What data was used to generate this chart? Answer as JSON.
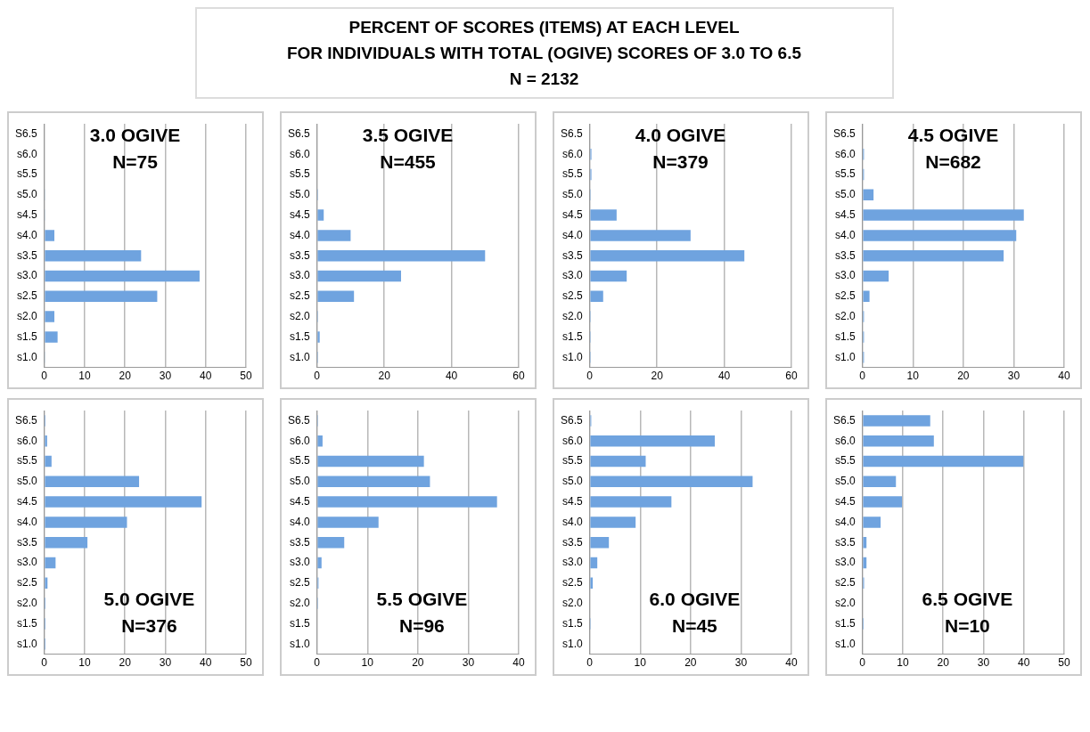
{
  "chart_data": [
    {
      "type": "other",
      "title": "PERCENT OF SCORES (ITEMS) AT EACH LEVEL",
      "subtitle": "FOR INDIVIDUALS WITH TOTAL (OGIVE) SCORES OF 3.0 TO 6.5",
      "annotations": [
        "N = 2132"
      ]
    },
    {
      "type": "bar",
      "orientation": "horizontal",
      "title": "3.0 OGIVE",
      "subtitle": "N=75",
      "categories": [
        "S6.5",
        "s6.0",
        "s5.5",
        "s5.0",
        "s4.5",
        "s4.0",
        "s3.5",
        "s3.0",
        "s2.5",
        "s2.0",
        "s1.5",
        "s1.0"
      ],
      "color": "#6fa3df",
      "values": [
        0,
        0,
        0,
        0.2,
        0.2,
        2.5,
        24,
        38.5,
        28,
        2.5,
        3.3,
        0.2
      ],
      "xlim": [
        0,
        50
      ],
      "xticks": [
        0,
        10,
        20,
        30,
        40,
        50
      ],
      "grid": "x"
    },
    {
      "type": "bar",
      "orientation": "horizontal",
      "title": "3.5 OGIVE",
      "subtitle": "N=455",
      "categories": [
        "S6.5",
        "s6.0",
        "s5.5",
        "s5.0",
        "s4.5",
        "s4.0",
        "s3.5",
        "s3.0",
        "s2.5",
        "s2.0",
        "s1.5",
        "s1.0"
      ],
      "color": "#6fa3df",
      "values": [
        0,
        0,
        0,
        0.3,
        2,
        10,
        50,
        25,
        11,
        0.3,
        0.8,
        0.3
      ],
      "xlim": [
        0,
        60
      ],
      "xticks": [
        0,
        20,
        40,
        60
      ],
      "grid": "x"
    },
    {
      "type": "bar",
      "orientation": "horizontal",
      "title": "4.0 OGIVE",
      "subtitle": "N=379",
      "categories": [
        "S6.5",
        "s6.0",
        "s5.5",
        "s5.0",
        "s4.5",
        "s4.0",
        "s3.5",
        "s3.0",
        "s2.5",
        "s2.0",
        "s1.5",
        "s1.0"
      ],
      "color": "#6fa3df",
      "values": [
        0,
        0.5,
        0.5,
        0.3,
        8,
        30,
        46,
        11,
        4,
        0.3,
        0.3,
        0.3
      ],
      "xlim": [
        0,
        60
      ],
      "xticks": [
        0,
        20,
        40,
        60
      ],
      "grid": "x"
    },
    {
      "type": "bar",
      "orientation": "horizontal",
      "title": "4.5 OGIVE",
      "subtitle": "N=682",
      "categories": [
        "S6.5",
        "s6.0",
        "s5.5",
        "s5.0",
        "s4.5",
        "s4.0",
        "s3.5",
        "s3.0",
        "s2.5",
        "s2.0",
        "s1.5",
        "s1.0"
      ],
      "color": "#6fa3df",
      "values": [
        0,
        0.3,
        0.3,
        2.2,
        32,
        30.5,
        28,
        5.2,
        1.4,
        0.3,
        0.3,
        0.3
      ],
      "xlim": [
        0,
        40
      ],
      "xticks": [
        0,
        10,
        20,
        30,
        40
      ],
      "grid": "x"
    },
    {
      "type": "bar",
      "orientation": "horizontal",
      "title": "5.0 OGIVE",
      "subtitle": "N=376",
      "categories": [
        "S6.5",
        "s6.0",
        "s5.5",
        "s5.0",
        "s4.5",
        "s4.0",
        "s3.5",
        "s3.0",
        "s2.5",
        "s2.0",
        "s1.5",
        "s1.0"
      ],
      "color": "#6fa3df",
      "values": [
        0.3,
        0.7,
        1.8,
        23.5,
        39,
        20.5,
        10.7,
        2.8,
        0.8,
        0.3,
        0.3,
        0.3
      ],
      "xlim": [
        0,
        50
      ],
      "xticks": [
        0,
        10,
        20,
        30,
        40,
        50
      ],
      "grid": "x"
    },
    {
      "type": "bar",
      "orientation": "horizontal",
      "title": "5.5 OGIVE",
      "subtitle": "N=96",
      "categories": [
        "S6.5",
        "s6.0",
        "s5.5",
        "s5.0",
        "s4.5",
        "s4.0",
        "s3.5",
        "s3.0",
        "s2.5",
        "s2.0",
        "s1.5",
        "s1.0"
      ],
      "color": "#6fa3df",
      "values": [
        0.2,
        1.1,
        21.2,
        22.4,
        35.7,
        12.2,
        5.4,
        0.9,
        0.3,
        0.2,
        0,
        0
      ],
      "xlim": [
        0,
        40
      ],
      "xticks": [
        0,
        10,
        20,
        30,
        40
      ],
      "grid": "x"
    },
    {
      "type": "bar",
      "orientation": "horizontal",
      "title": "6.0 OGIVE",
      "subtitle": "N=45",
      "categories": [
        "S6.5",
        "s6.0",
        "s5.5",
        "s5.0",
        "s4.5",
        "s4.0",
        "s3.5",
        "s3.0",
        "s2.5",
        "s2.0",
        "s1.5",
        "s1.0"
      ],
      "color": "#6fa3df",
      "values": [
        0.3,
        24.8,
        11.1,
        32.3,
        16.2,
        9.1,
        3.8,
        1.5,
        0.6,
        0,
        0.2,
        0
      ],
      "xlim": [
        0,
        40
      ],
      "xticks": [
        0,
        10,
        20,
        30,
        40
      ],
      "grid": "x"
    },
    {
      "type": "bar",
      "orientation": "horizontal",
      "title": "6.5 OGIVE",
      "subtitle": "N=10",
      "categories": [
        "S6.5",
        "s6.0",
        "s5.5",
        "s5.0",
        "s4.5",
        "s4.0",
        "s3.5",
        "s3.0",
        "s2.5",
        "s2.0",
        "s1.5",
        "s1.0"
      ],
      "color": "#6fa3df",
      "values": [
        16.8,
        17.7,
        39.9,
        8.3,
        9.8,
        4.5,
        1,
        1,
        0.4,
        0,
        0.3,
        0
      ],
      "xlim": [
        0,
        50
      ],
      "xticks": [
        0,
        10,
        20,
        30,
        40,
        50
      ],
      "grid": "x"
    }
  ]
}
